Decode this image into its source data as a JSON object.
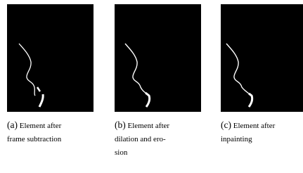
{
  "subfigures": [
    {
      "label": "(a)",
      "lines": [
        "Element after",
        "frame subtraction"
      ]
    },
    {
      "label": "(b)",
      "lines": [
        "Element after",
        "dilation and ero-",
        "sion"
      ]
    },
    {
      "label": "(c)",
      "lines": [
        "Element after",
        "inpainting"
      ]
    }
  ]
}
